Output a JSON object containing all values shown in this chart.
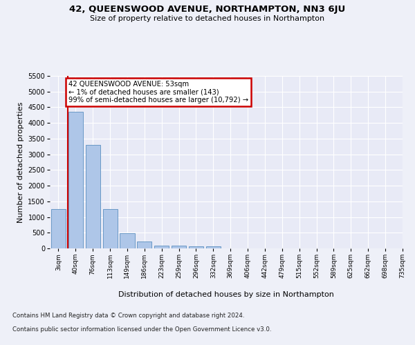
{
  "title": "42, QUEENSWOOD AVENUE, NORTHAMPTON, NN3 6JU",
  "subtitle": "Size of property relative to detached houses in Northampton",
  "xlabel": "Distribution of detached houses by size in Northampton",
  "ylabel": "Number of detached properties",
  "footnote1": "Contains HM Land Registry data © Crown copyright and database right 2024.",
  "footnote2": "Contains public sector information licensed under the Open Government Licence v3.0.",
  "bar_values": [
    1250,
    4350,
    3300,
    1250,
    490,
    210,
    90,
    80,
    60,
    60,
    0,
    0,
    0,
    0,
    0,
    0,
    0,
    0,
    0,
    0
  ],
  "x_labels": [
    "3sqm",
    "40sqm",
    "76sqm",
    "113sqm",
    "149sqm",
    "186sqm",
    "223sqm",
    "259sqm",
    "296sqm",
    "332sqm",
    "369sqm",
    "406sqm",
    "442sqm",
    "479sqm",
    "515sqm",
    "552sqm",
    "589sqm",
    "625sqm",
    "662sqm",
    "698sqm",
    "735sqm"
  ],
  "ylim": [
    0,
    5500
  ],
  "yticks": [
    0,
    500,
    1000,
    1500,
    2000,
    2500,
    3000,
    3500,
    4000,
    4500,
    5000,
    5500
  ],
  "bar_color": "#aec6e8",
  "bar_edge_color": "#5a8fc0",
  "annotation_text": "42 QUEENSWOOD AVENUE: 53sqm\n← 1% of detached houses are smaller (143)\n99% of semi-detached houses are larger (10,792) →",
  "annotation_box_color": "#ffffff",
  "annotation_box_edge_color": "#cc0000",
  "red_line_color": "#cc0000",
  "background_color": "#eef0f8",
  "plot_bg_color": "#e8eaf6"
}
